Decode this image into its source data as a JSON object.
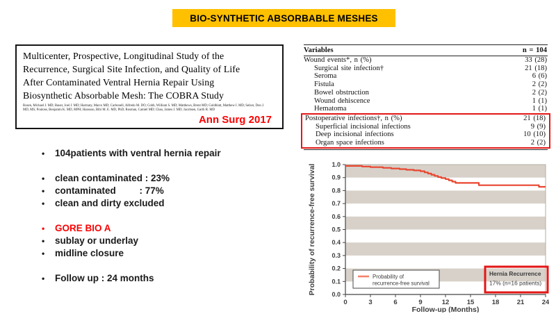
{
  "slide": {
    "title": "BIO-SYNTHETIC ABSORBABLE MESHES"
  },
  "colors": {
    "banner_bg": "#ffc000",
    "banner_text": "#000000",
    "red_text": "#fb0000",
    "highlight_red": "#e31616",
    "curve": "#e8462f",
    "legend_sample": "#f4836a",
    "band_gray": "#d7d1c9",
    "axis_text": "#3d3d3d",
    "axis_line": "#444444",
    "plot_frame": "#b3ada5"
  },
  "paper": {
    "title_lines": [
      "Multicenter, Prospective, Longitudinal Study of the",
      "Recurrence, Surgical Site Infection, and Quality of Life",
      "After Contaminated Ventral Hernia Repair Using",
      "Biosynthetic Absorbable Mesh: The COBRA Study"
    ],
    "authors": "Rosen, Michael J. MD; Bauer, Joel J. MD; Harmaty, Marco MD; Carbonell, Alfredo M. DO; Cobb, William S. MD; Matthews, Brent MD; Goldblatt, Matthew I. MD; Selzer, Don J. MD, MS; Poulose, Benjamin K. MD, MPH; Hansson, Bibi M. E. MD, PhD; Rosman, Camiel MD; Chao, James J. MD; Jacobsen, Garth R. MD",
    "journal": "Ann Surg 2017"
  },
  "bullets": {
    "groups": [
      [
        {
          "text": "104patients with ventral hernia repair",
          "color": "black"
        }
      ],
      [
        {
          "text": "clean contaminated : 23%",
          "color": "black"
        },
        {
          "text": "contaminated         : 77%",
          "color": "black"
        },
        {
          "text": "clean and dirty excluded",
          "color": "black"
        }
      ],
      [
        {
          "text": "GORE BIO A",
          "color": "red"
        },
        {
          "text": "sublay or underlay",
          "color": "black"
        },
        {
          "text": "midline closure",
          "color": "black"
        }
      ],
      [
        {
          "text": "Follow up : 24 months",
          "color": "black"
        }
      ]
    ]
  },
  "table": {
    "header": {
      "left": "Variables",
      "right": "n = 104"
    },
    "rows": [
      {
        "label": "Wound events*, n (%)",
        "value": "33 (28)",
        "indent": false
      },
      {
        "label": "Surgical site infection†",
        "value": "21 (18)",
        "indent": true
      },
      {
        "label": "Seroma",
        "value": "6 (6)",
        "indent": true
      },
      {
        "label": "Fistula",
        "value": "2 (2)",
        "indent": true
      },
      {
        "label": "Bowel obstruction",
        "value": "2 (2)",
        "indent": true
      },
      {
        "label": "Wound dehiscence",
        "value": "1 (1)",
        "indent": true
      },
      {
        "label": "Hematoma",
        "value": "1 (1)",
        "indent": true
      },
      {
        "label": "Postoperative infections†, n (%)",
        "value": "21 (18)",
        "indent": false
      },
      {
        "label": "Superficial incisional infections",
        "value": "9 (9)",
        "indent": true
      },
      {
        "label": "Deep incisional infections",
        "value": "10 (10)",
        "indent": true
      },
      {
        "label": "Organ space infections",
        "value": "2 (2)",
        "indent": true
      }
    ],
    "highlight_start_row": 7
  },
  "chart_data": {
    "type": "line",
    "subtype": "kaplan-meier-step",
    "title": "",
    "xlabel": "Follow-up (Months)",
    "ylabel": "Probability of recurrence-free survival",
    "xlim": [
      0,
      24
    ],
    "ylim": [
      0.0,
      1.0
    ],
    "xticks": [
      0,
      3,
      6,
      9,
      12,
      15,
      18,
      21,
      24
    ],
    "yticks": [
      0.0,
      0.1,
      0.2,
      0.3,
      0.4,
      0.5,
      0.6,
      0.7,
      0.8,
      0.9,
      1.0
    ],
    "grid": "alternating horizontal bands (gray/white per 0.1)",
    "legend_position": "lower-left",
    "series": [
      {
        "name": "Probability of recurrence-free survival",
        "legend_lines": [
          "Probability of",
          "recurrence-free survival"
        ],
        "step_points": [
          [
            0,
            0.99
          ],
          [
            2,
            0.985
          ],
          [
            3,
            0.98
          ],
          [
            4.5,
            0.975
          ],
          [
            5.5,
            0.97
          ],
          [
            6.5,
            0.965
          ],
          [
            7.3,
            0.96
          ],
          [
            8.2,
            0.955
          ],
          [
            9,
            0.949
          ],
          [
            9.5,
            0.94
          ],
          [
            9.9,
            0.931
          ],
          [
            10.3,
            0.922
          ],
          [
            10.7,
            0.913
          ],
          [
            11.1,
            0.904
          ],
          [
            11.5,
            0.896
          ],
          [
            12,
            0.888
          ],
          [
            12.4,
            0.879
          ],
          [
            12.8,
            0.869
          ],
          [
            13.2,
            0.859
          ],
          [
            16,
            0.841
          ],
          [
            23.2,
            0.829
          ],
          [
            24,
            0.829
          ]
        ]
      }
    ],
    "annotation": {
      "lines": [
        "Hernia Recurrence",
        "17% (n=16 patients)"
      ],
      "position": "lower-right"
    }
  }
}
